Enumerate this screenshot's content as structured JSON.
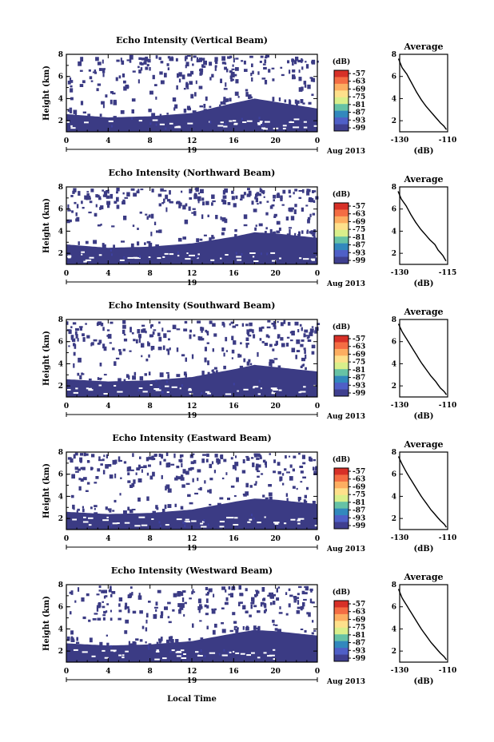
{
  "figure": {
    "xlabel": "Local Time",
    "date_label": "Aug 2013",
    "day_label": "19",
    "colorbar_unit": "(dB)",
    "colorbar_ticks": [
      "-57",
      "-63",
      "-69",
      "-75",
      "-81",
      "-87",
      "-93",
      "-99"
    ],
    "colorbar_colors": [
      "#d73027",
      "#f46d43",
      "#fdae61",
      "#fee08b",
      "#d9ef8b",
      "#66c2a5",
      "#3288bd",
      "#4f5fc7",
      "#3f3f8f"
    ],
    "field_color": "#3b3b84",
    "speckle_color": "#3d40a0",
    "profile_title": "Average",
    "profile_xlabel": "(dB)"
  },
  "chart_data": [
    {
      "type": "heatmap",
      "title": "Echo Intensity (Vertical Beam)",
      "ylabel": "Height (km)",
      "xlim": [
        0,
        24
      ],
      "ylim": [
        1,
        8
      ],
      "xticks": [
        "0",
        "4",
        "8",
        "12",
        "16",
        "20",
        "0"
      ],
      "yticks": [
        "2",
        "4",
        "6",
        "8"
      ],
      "clim": [
        -99,
        -57
      ],
      "echo_top_km": {
        "t": [
          0,
          4,
          8,
          12,
          16,
          18,
          20,
          22,
          24
        ],
        "h": [
          2.6,
          2.3,
          2.4,
          2.7,
          3.6,
          4.0,
          3.7,
          3.4,
          3.1
        ]
      },
      "profile": {
        "title": "Average",
        "xlabel": "(dB)",
        "xlim": [
          -130,
          -110
        ],
        "ylim": [
          1,
          8
        ],
        "xticks": [
          "-130",
          "-110"
        ],
        "yticks": [
          "2",
          "4",
          "6",
          "8"
        ],
        "points": [
          [
            -130.5,
            7.6
          ],
          [
            -129,
            6.8
          ],
          [
            -127,
            6.2
          ],
          [
            -125,
            5.4
          ],
          [
            -123,
            4.6
          ],
          [
            -121,
            3.9
          ],
          [
            -119,
            3.3
          ],
          [
            -117,
            2.8
          ],
          [
            -115,
            2.3
          ],
          [
            -113,
            1.8
          ],
          [
            -111.5,
            1.5
          ],
          [
            -110.5,
            1.2
          ]
        ]
      }
    },
    {
      "type": "heatmap",
      "title": "Echo Intensity (Northward Beam)",
      "ylabel": "Height (km)",
      "xlim": [
        0,
        24
      ],
      "ylim": [
        1,
        8
      ],
      "xticks": [
        "0",
        "4",
        "8",
        "12",
        "16",
        "20",
        "0"
      ],
      "yticks": [
        "2",
        "4",
        "6",
        "8"
      ],
      "clim": [
        -99,
        -57
      ],
      "echo_top_km": {
        "t": [
          0,
          4,
          8,
          12,
          16,
          18,
          20,
          22,
          24
        ],
        "h": [
          2.8,
          2.5,
          2.6,
          2.9,
          3.5,
          3.9,
          3.8,
          3.6,
          3.4
        ]
      },
      "profile": {
        "title": "Average",
        "xlabel": "(dB)",
        "xlim": [
          -130,
          -115
        ],
        "ylim": [
          1,
          8
        ],
        "xticks": [
          "-130",
          "-115"
        ],
        "yticks": [
          "2",
          "4",
          "6",
          "8"
        ],
        "points": [
          [
            -130.5,
            7.6
          ],
          [
            -129.5,
            6.9
          ],
          [
            -128,
            6.3
          ],
          [
            -126.5,
            5.5
          ],
          [
            -125,
            4.8
          ],
          [
            -123.5,
            4.2
          ],
          [
            -122,
            3.7
          ],
          [
            -120.5,
            3.2
          ],
          [
            -119,
            2.8
          ],
          [
            -118,
            2.3
          ],
          [
            -116.5,
            1.8
          ],
          [
            -115.5,
            1.3
          ]
        ]
      }
    },
    {
      "type": "heatmap",
      "title": "Echo Intensity (Southward Beam)",
      "ylabel": "Height (km)",
      "xlim": [
        0,
        24
      ],
      "ylim": [
        1,
        8
      ],
      "xticks": [
        "0",
        "4",
        "8",
        "12",
        "16",
        "20",
        "0"
      ],
      "yticks": [
        "2",
        "4",
        "6",
        "8"
      ],
      "clim": [
        -99,
        -57
      ],
      "echo_top_km": {
        "t": [
          0,
          4,
          8,
          12,
          16,
          18,
          20,
          22,
          24
        ],
        "h": [
          2.6,
          2.4,
          2.5,
          2.8,
          3.5,
          3.9,
          3.7,
          3.5,
          3.3
        ]
      },
      "profile": {
        "title": "Average",
        "xlabel": "(dB)",
        "xlim": [
          -130,
          -110
        ],
        "ylim": [
          1,
          8
        ],
        "xticks": [
          "-130",
          "-110"
        ],
        "yticks": [
          "2",
          "4",
          "6",
          "8"
        ],
        "points": [
          [
            -130.5,
            7.6
          ],
          [
            -129,
            6.9
          ],
          [
            -127,
            6.2
          ],
          [
            -125,
            5.5
          ],
          [
            -123,
            4.8
          ],
          [
            -121,
            4.1
          ],
          [
            -119,
            3.5
          ],
          [
            -117,
            2.9
          ],
          [
            -115,
            2.4
          ],
          [
            -113,
            1.8
          ],
          [
            -111.5,
            1.5
          ],
          [
            -110.5,
            1.2
          ]
        ]
      }
    },
    {
      "type": "heatmap",
      "title": "Echo Intensity (Eastward Beam)",
      "ylabel": "Height (km)",
      "xlim": [
        0,
        24
      ],
      "ylim": [
        1,
        8
      ],
      "xticks": [
        "0",
        "4",
        "8",
        "12",
        "16",
        "20",
        "0"
      ],
      "yticks": [
        "2",
        "4",
        "6",
        "8"
      ],
      "clim": [
        -99,
        -57
      ],
      "echo_top_km": {
        "t": [
          0,
          4,
          8,
          12,
          16,
          18,
          20,
          22,
          24
        ],
        "h": [
          2.6,
          2.4,
          2.5,
          2.8,
          3.5,
          3.8,
          3.7,
          3.5,
          3.3
        ]
      },
      "profile": {
        "title": "Average",
        "xlabel": "(dB)",
        "xlim": [
          -130,
          -110
        ],
        "ylim": [
          1,
          8
        ],
        "xticks": [
          "-130",
          "-110"
        ],
        "yticks": [
          "2",
          "4",
          "6",
          "8"
        ],
        "points": [
          [
            -130.5,
            7.6
          ],
          [
            -129,
            6.9
          ],
          [
            -127,
            6.1
          ],
          [
            -125,
            5.4
          ],
          [
            -123,
            4.7
          ],
          [
            -121,
            4.0
          ],
          [
            -119,
            3.4
          ],
          [
            -117,
            2.8
          ],
          [
            -115,
            2.3
          ],
          [
            -113,
            1.8
          ],
          [
            -111.5,
            1.5
          ],
          [
            -110.5,
            1.2
          ]
        ]
      }
    },
    {
      "type": "heatmap",
      "title": "Echo Intensity (Westward Beam)",
      "ylabel": "Height (km)",
      "xlim": [
        0,
        24
      ],
      "ylim": [
        1,
        8
      ],
      "xticks": [
        "0",
        "4",
        "8",
        "12",
        "16",
        "20",
        "0"
      ],
      "yticks": [
        "2",
        "4",
        "6",
        "8"
      ],
      "clim": [
        -99,
        -57
      ],
      "echo_top_km": {
        "t": [
          0,
          4,
          8,
          12,
          16,
          18,
          20,
          22,
          24
        ],
        "h": [
          2.7,
          2.5,
          2.6,
          2.9,
          3.6,
          3.9,
          3.8,
          3.6,
          3.4
        ]
      },
      "profile": {
        "title": "Average",
        "xlabel": "(dB)",
        "xlim": [
          -130,
          -110
        ],
        "ylim": [
          1,
          8
        ],
        "xticks": [
          "-130",
          "-110"
        ],
        "yticks": [
          "2",
          "4",
          "6",
          "8"
        ],
        "points": [
          [
            -130.5,
            7.6
          ],
          [
            -129,
            6.8
          ],
          [
            -127,
            6.1
          ],
          [
            -125,
            5.4
          ],
          [
            -123,
            4.7
          ],
          [
            -121,
            4.0
          ],
          [
            -119,
            3.4
          ],
          [
            -117,
            2.8
          ],
          [
            -115,
            2.3
          ],
          [
            -113,
            1.8
          ],
          [
            -111.5,
            1.5
          ],
          [
            -110.5,
            1.2
          ]
        ]
      }
    }
  ]
}
